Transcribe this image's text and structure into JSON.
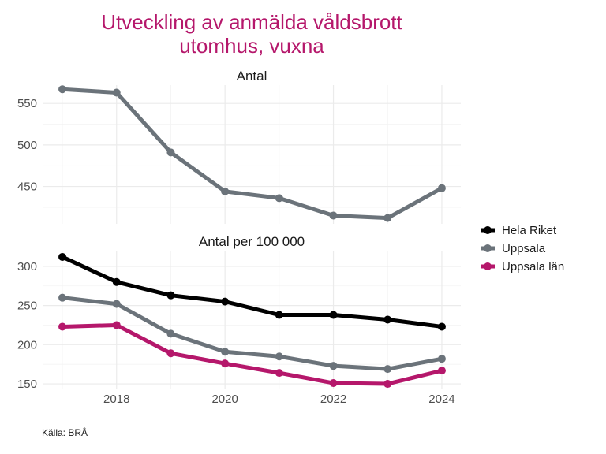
{
  "chart_data": {
    "type": "line",
    "title": [
      "Utveckling av anmälda våldsbrott",
      "utomhus, vuxna"
    ],
    "title_color": "#b5176b",
    "caption": "Källa: BRÅ",
    "x": [
      2017,
      2018,
      2019,
      2020,
      2021,
      2022,
      2023,
      2024
    ],
    "x_ticks": [
      2018,
      2020,
      2022,
      2024
    ],
    "x_tick_labels": [
      "2018",
      "2020",
      "2022",
      "2024"
    ],
    "grid": true,
    "legend_position": "right",
    "legend": [
      {
        "name": "Hela Riket",
        "color": "#000000"
      },
      {
        "name": "Uppsala",
        "color": "#6b737a"
      },
      {
        "name": "Uppsala län",
        "color": "#b5176b"
      }
    ],
    "panels": [
      {
        "title": "Antal",
        "ylim": [
          405,
          572
        ],
        "y_ticks": [
          450,
          500,
          550
        ],
        "y_tick_labels": [
          "450",
          "500",
          "550"
        ],
        "series": [
          {
            "name": "Uppsala",
            "color": "#6b737a",
            "values": [
              567,
              563,
              491,
              444,
              436,
              415,
              412,
              448
            ]
          }
        ]
      },
      {
        "title": "Antal per 100 000",
        "ylim": [
          143,
          320
        ],
        "y_ticks": [
          150,
          200,
          250,
          300
        ],
        "y_tick_labels": [
          "150",
          "200",
          "250",
          "300"
        ],
        "series": [
          {
            "name": "Hela Riket",
            "color": "#000000",
            "values": [
              312,
              280,
              263,
              255,
              238,
              238,
              232,
              223
            ]
          },
          {
            "name": "Uppsala",
            "color": "#6b737a",
            "values": [
              260,
              252,
              214,
              191,
              185,
              173,
              169,
              182
            ]
          },
          {
            "name": "Uppsala län",
            "color": "#b5176b",
            "values": [
              223,
              225,
              189,
              176,
              164,
              151,
              150,
              167
            ]
          }
        ]
      }
    ]
  }
}
